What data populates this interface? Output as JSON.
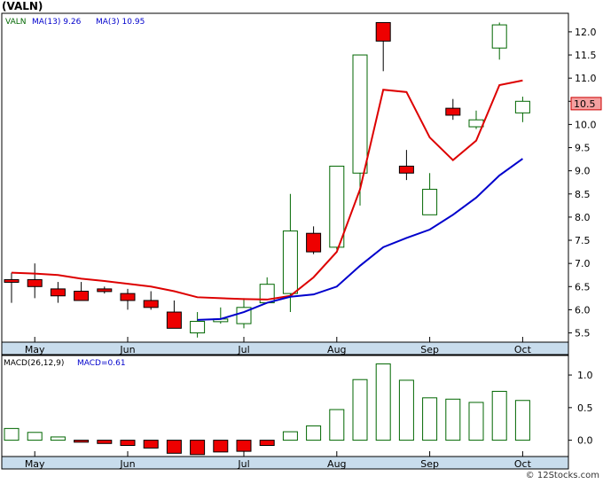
{
  "title": "(VALN)",
  "credit": "© 12Stocks.com",
  "colors": {
    "up": "#006600",
    "down": "#ee0000",
    "ma_long": "#0000cc",
    "ma_short": "#dd0000",
    "axis_band": "#c8dcec",
    "label_bg": "#f4a0a0"
  },
  "chart_data": [
    {
      "type": "candlestick",
      "legend": {
        "ticker": "VALN",
        "ma13_label": "MA(13)",
        "ma13_value": "9.26",
        "ma3_label": "MA(3)",
        "ma3_value": "10.95"
      },
      "x_labels": [
        {
          "label": "May",
          "index": 1
        },
        {
          "label": "Jun",
          "index": 5
        },
        {
          "label": "Jul",
          "index": 10
        },
        {
          "label": "Aug",
          "index": 14
        },
        {
          "label": "Sep",
          "index": 18
        },
        {
          "label": "Oct",
          "index": 22
        }
      ],
      "y_ticks": [
        5.5,
        6.0,
        6.5,
        7.0,
        7.5,
        8.0,
        8.5,
        9.0,
        9.5,
        10.0,
        10.5,
        11.0,
        11.5,
        12.0
      ],
      "y_tick_labels": [
        "5.5",
        "6.0",
        "6.5",
        "7.0",
        "7.5",
        "8.0",
        "8.5",
        "9.0",
        "9.5",
        "10.0",
        "10.5",
        "11.0",
        "11.5",
        "12.0"
      ],
      "ylim": [
        5.3,
        12.4
      ],
      "last_price_label": "10.5",
      "last_price": 10.45,
      "candles": [
        {
          "o": 6.65,
          "h": 6.8,
          "l": 6.15,
          "c": 6.6
        },
        {
          "o": 6.65,
          "h": 7.0,
          "l": 6.25,
          "c": 6.5
        },
        {
          "o": 6.45,
          "h": 6.6,
          "l": 6.15,
          "c": 6.3
        },
        {
          "o": 6.4,
          "h": 6.6,
          "l": 6.2,
          "c": 6.2
        },
        {
          "o": 6.45,
          "h": 6.5,
          "l": 6.35,
          "c": 6.4
        },
        {
          "o": 6.35,
          "h": 6.45,
          "l": 6.0,
          "c": 6.2
        },
        {
          "o": 6.2,
          "h": 6.4,
          "l": 6.0,
          "c": 6.05
        },
        {
          "o": 5.95,
          "h": 6.2,
          "l": 5.6,
          "c": 5.6
        },
        {
          "o": 5.5,
          "h": 5.95,
          "l": 5.4,
          "c": 5.75
        },
        {
          "o": 5.75,
          "h": 6.05,
          "l": 5.7,
          "c": 5.8
        },
        {
          "o": 5.7,
          "h": 6.25,
          "l": 5.6,
          "c": 6.05
        },
        {
          "o": 6.15,
          "h": 6.7,
          "l": 6.15,
          "c": 6.55
        },
        {
          "o": 6.35,
          "h": 8.5,
          "l": 5.95,
          "c": 7.7
        },
        {
          "o": 7.65,
          "h": 7.8,
          "l": 7.2,
          "c": 7.25
        },
        {
          "o": 7.35,
          "h": 9.1,
          "l": 7.3,
          "c": 9.1
        },
        {
          "o": 8.95,
          "h": 11.5,
          "l": 8.25,
          "c": 11.5
        },
        {
          "o": 12.2,
          "h": 12.2,
          "l": 11.15,
          "c": 11.8
        },
        {
          "o": 9.1,
          "h": 9.45,
          "l": 8.8,
          "c": 8.95
        },
        {
          "o": 8.05,
          "h": 8.95,
          "l": 8.05,
          "c": 8.6
        },
        {
          "o": 10.35,
          "h": 10.55,
          "l": 10.1,
          "c": 10.2
        },
        {
          "o": 9.95,
          "h": 10.3,
          "l": 9.9,
          "c": 10.1
        },
        {
          "o": 11.65,
          "h": 12.2,
          "l": 11.4,
          "c": 12.15
        },
        {
          "o": 10.25,
          "h": 10.6,
          "l": 10.05,
          "c": 10.5
        }
      ],
      "ma_short": [
        6.8,
        6.78,
        6.75,
        6.67,
        6.62,
        6.56,
        6.5,
        6.4,
        6.27,
        6.25,
        6.23,
        6.22,
        6.3,
        6.7,
        7.25,
        8.6,
        10.75,
        10.7,
        9.72,
        9.23,
        9.65,
        10.85,
        10.95
      ],
      "ma_long_start_index": 8,
      "ma_long": [
        5.78,
        5.8,
        5.95,
        6.15,
        6.28,
        6.33,
        6.5,
        6.95,
        7.35,
        7.55,
        7.73,
        8.05,
        8.42,
        8.9,
        9.26
      ]
    },
    {
      "type": "bar",
      "legend": {
        "label": "MACD(26,12,9)",
        "value_label": "MACD=0.61"
      },
      "y_ticks": [
        0.0,
        0.5,
        1.0
      ],
      "y_tick_labels": [
        "0.0",
        "0.5",
        "1.0"
      ],
      "ylim": [
        -0.25,
        1.3
      ],
      "values": [
        0.18,
        0.12,
        0.05,
        -0.03,
        -0.05,
        -0.08,
        -0.12,
        -0.2,
        -0.22,
        -0.18,
        -0.17,
        -0.08,
        0.13,
        0.22,
        0.47,
        0.93,
        1.17,
        0.92,
        0.65,
        0.63,
        0.58,
        0.75,
        0.61
      ]
    }
  ]
}
